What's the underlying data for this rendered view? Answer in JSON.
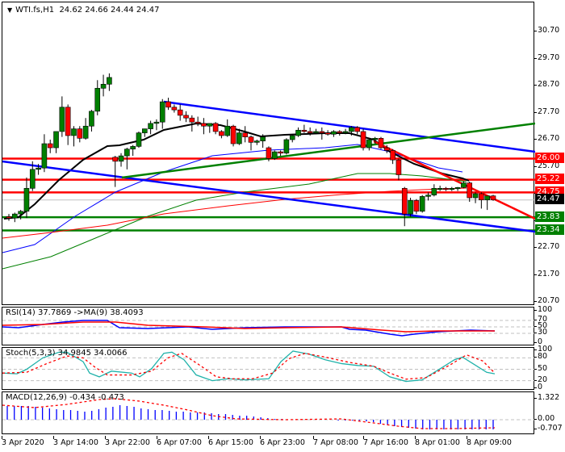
{
  "header": {
    "symbol": "WTI.fs,H1",
    "ohlc": "24.62 24.66 24.44 24.47",
    "dropdown_icon": "triangle-down-icon"
  },
  "colors": {
    "bull": "#007f00",
    "bear": "#ff0000",
    "resistance": "#ff0000",
    "support": "#008000",
    "channel": "#0000ff",
    "ma_fast": "#000000",
    "current_price_bg": "#000000"
  },
  "price_scale": {
    "ticks": [
      "30.70",
      "29.70",
      "28.70",
      "27.70",
      "26.70",
      "25.70",
      "24.70",
      "23.70",
      "22.70",
      "21.70",
      "20.70"
    ]
  },
  "levels": [
    {
      "label": "26.00",
      "price": 26.0,
      "color": "#ff0000",
      "kind": "resistance"
    },
    {
      "label": "25.22",
      "price": 25.22,
      "color": "#ff0000",
      "kind": "resistance"
    },
    {
      "label": "24.75",
      "price": 24.75,
      "color": "#ff0000",
      "kind": "resistance"
    },
    {
      "label": "24.47",
      "price": 24.47,
      "color": "#000000",
      "kind": "current"
    },
    {
      "label": "23.83",
      "price": 23.83,
      "color": "#008000",
      "kind": "support"
    },
    {
      "label": "23.34",
      "price": 23.34,
      "color": "#008000",
      "kind": "support"
    }
  ],
  "rsi": {
    "title": "RSI(14) 37.7869  ->MA(9) 38.4093",
    "scale": [
      "100",
      "70",
      "50",
      "30",
      "0"
    ]
  },
  "stoch": {
    "title": "Stoch(5,3,3) 34.9845 34.0066",
    "scale": [
      "100",
      "80",
      "50",
      "20",
      "0"
    ]
  },
  "macd": {
    "title": "MACD(12,26,9) -0.434 -0.473",
    "scale": [
      "1.322",
      "0.00",
      "-0.707"
    ]
  },
  "time_axis": {
    "labels": [
      "3 Apr 2020",
      "3 Apr 14:00",
      "3 Apr 22:00",
      "6 Apr 07:00",
      "6 Apr 15:00",
      "6 Apr 23:00",
      "7 Apr 08:00",
      "7 Apr 16:00",
      "8 Apr 01:00",
      "8 Apr 09:00"
    ]
  },
  "chart_data": {
    "type": "candlestick",
    "title": "WTI.fs,H1 24.62 24.66 24.44 24.47",
    "xlabel": "",
    "ylabel": "",
    "ylim": [
      20.5,
      31.7
    ],
    "grid": false,
    "categories": [
      "3 Apr 2020",
      "3 Apr 14:00",
      "3 Apr 22:00",
      "6 Apr 07:00",
      "6 Apr 15:00",
      "6 Apr 23:00",
      "7 Apr 08:00",
      "7 Apr 16:00",
      "8 Apr 01:00",
      "8 Apr 09:00"
    ],
    "candles": [
      {
        "o": 23.85,
        "h": 23.95,
        "l": 23.7,
        "c": 23.8
      },
      {
        "o": 23.8,
        "h": 24.0,
        "l": 23.65,
        "c": 23.95
      },
      {
        "o": 23.95,
        "h": 24.1,
        "l": 23.75,
        "c": 24.05
      },
      {
        "o": 24.05,
        "h": 25.3,
        "l": 23.8,
        "c": 24.9
      },
      {
        "o": 24.9,
        "h": 25.9,
        "l": 24.8,
        "c": 25.6
      },
      {
        "o": 25.6,
        "h": 25.8,
        "l": 25.4,
        "c": 25.65
      },
      {
        "o": 25.65,
        "h": 26.9,
        "l": 25.5,
        "c": 26.55
      },
      {
        "o": 26.55,
        "h": 26.7,
        "l": 26.2,
        "c": 26.4
      },
      {
        "o": 26.4,
        "h": 27.0,
        "l": 26.2,
        "c": 27.0
      },
      {
        "o": 27.0,
        "h": 28.3,
        "l": 26.8,
        "c": 27.9
      },
      {
        "o": 27.9,
        "h": 28.0,
        "l": 26.5,
        "c": 26.85
      },
      {
        "o": 26.85,
        "h": 27.2,
        "l": 26.45,
        "c": 27.1
      },
      {
        "o": 27.1,
        "h": 27.2,
        "l": 26.6,
        "c": 26.75
      },
      {
        "o": 26.75,
        "h": 27.5,
        "l": 26.7,
        "c": 27.2
      },
      {
        "o": 27.2,
        "h": 27.8,
        "l": 27.0,
        "c": 27.75
      },
      {
        "o": 27.75,
        "h": 28.9,
        "l": 27.6,
        "c": 28.6
      },
      {
        "o": 28.6,
        "h": 29.1,
        "l": 28.3,
        "c": 28.75
      },
      {
        "o": 28.75,
        "h": 29.15,
        "l": 28.5,
        "c": 29.0
      },
      {
        "o": 26.05,
        "h": 26.1,
        "l": 24.95,
        "c": 25.9
      },
      {
        "o": 25.9,
        "h": 26.2,
        "l": 25.7,
        "c": 26.1
      },
      {
        "o": 26.1,
        "h": 26.4,
        "l": 25.6,
        "c": 26.35
      },
      {
        "o": 26.35,
        "h": 26.5,
        "l": 26.1,
        "c": 26.45
      },
      {
        "o": 26.45,
        "h": 27.0,
        "l": 26.4,
        "c": 26.95
      },
      {
        "o": 26.95,
        "h": 27.1,
        "l": 26.8,
        "c": 27.1
      },
      {
        "o": 27.1,
        "h": 27.4,
        "l": 26.9,
        "c": 27.3
      },
      {
        "o": 27.3,
        "h": 27.45,
        "l": 27.05,
        "c": 27.35
      },
      {
        "o": 27.35,
        "h": 28.2,
        "l": 27.1,
        "c": 28.1
      },
      {
        "o": 28.1,
        "h": 28.25,
        "l": 27.8,
        "c": 27.9
      },
      {
        "o": 27.9,
        "h": 28.0,
        "l": 27.7,
        "c": 27.8
      },
      {
        "o": 27.8,
        "h": 28.0,
        "l": 27.4,
        "c": 27.6
      },
      {
        "o": 27.6,
        "h": 27.75,
        "l": 27.35,
        "c": 27.5
      },
      {
        "o": 27.5,
        "h": 27.6,
        "l": 27.0,
        "c": 27.35
      },
      {
        "o": 27.35,
        "h": 27.55,
        "l": 27.2,
        "c": 27.3
      },
      {
        "o": 27.3,
        "h": 27.5,
        "l": 26.9,
        "c": 27.2
      },
      {
        "o": 27.2,
        "h": 27.3,
        "l": 26.95,
        "c": 27.3
      },
      {
        "o": 27.3,
        "h": 27.35,
        "l": 26.9,
        "c": 27.0
      },
      {
        "o": 27.0,
        "h": 27.05,
        "l": 26.75,
        "c": 26.85
      },
      {
        "o": 26.85,
        "h": 27.45,
        "l": 26.8,
        "c": 27.2
      },
      {
        "o": 27.2,
        "h": 27.25,
        "l": 26.45,
        "c": 26.55
      },
      {
        "o": 26.55,
        "h": 27.1,
        "l": 26.5,
        "c": 26.95
      },
      {
        "o": 26.95,
        "h": 27.2,
        "l": 26.6,
        "c": 26.8
      },
      {
        "o": 26.8,
        "h": 26.85,
        "l": 26.3,
        "c": 26.6
      },
      {
        "o": 26.6,
        "h": 26.7,
        "l": 26.5,
        "c": 26.65
      },
      {
        "o": 26.65,
        "h": 26.9,
        "l": 26.4,
        "c": 26.8
      },
      {
        "o": 26.4,
        "h": 26.45,
        "l": 25.9,
        "c": 26.0
      },
      {
        "o": 26.0,
        "h": 26.3,
        "l": 25.95,
        "c": 26.25
      },
      {
        "o": 26.25,
        "h": 26.3,
        "l": 26.1,
        "c": 26.2
      },
      {
        "o": 26.2,
        "h": 26.75,
        "l": 26.15,
        "c": 26.7
      },
      {
        "o": 26.7,
        "h": 26.9,
        "l": 26.6,
        "c": 26.85
      },
      {
        "o": 26.85,
        "h": 27.15,
        "l": 26.8,
        "c": 27.05
      },
      {
        "o": 27.05,
        "h": 27.25,
        "l": 26.95,
        "c": 27.0
      },
      {
        "o": 27.0,
        "h": 27.15,
        "l": 26.85,
        "c": 26.95
      },
      {
        "o": 26.95,
        "h": 27.1,
        "l": 26.9,
        "c": 27.0
      },
      {
        "o": 27.0,
        "h": 27.15,
        "l": 26.7,
        "c": 26.95
      },
      {
        "o": 26.95,
        "h": 27.05,
        "l": 26.85,
        "c": 26.9
      },
      {
        "o": 26.9,
        "h": 27.05,
        "l": 26.8,
        "c": 27.0
      },
      {
        "o": 27.0,
        "h": 27.05,
        "l": 26.85,
        "c": 26.95
      },
      {
        "o": 26.95,
        "h": 27.1,
        "l": 26.9,
        "c": 27.0
      },
      {
        "o": 27.0,
        "h": 27.2,
        "l": 26.85,
        "c": 27.15
      },
      {
        "o": 27.15,
        "h": 27.2,
        "l": 26.9,
        "c": 27.0
      },
      {
        "o": 27.0,
        "h": 27.1,
        "l": 26.3,
        "c": 26.4
      },
      {
        "o": 26.4,
        "h": 26.75,
        "l": 26.3,
        "c": 26.7
      },
      {
        "o": 26.7,
        "h": 26.8,
        "l": 26.55,
        "c": 26.75
      },
      {
        "o": 26.75,
        "h": 26.8,
        "l": 26.35,
        "c": 26.4
      },
      {
        "o": 26.4,
        "h": 26.5,
        "l": 26.2,
        "c": 26.3
      },
      {
        "o": 26.3,
        "h": 26.35,
        "l": 25.8,
        "c": 25.95
      },
      {
        "o": 25.95,
        "h": 26.0,
        "l": 25.2,
        "c": 25.4
      },
      {
        "o": 24.9,
        "h": 24.95,
        "l": 23.5,
        "c": 23.95
      },
      {
        "o": 23.95,
        "h": 24.55,
        "l": 23.85,
        "c": 24.45
      },
      {
        "o": 24.45,
        "h": 24.5,
        "l": 23.95,
        "c": 24.05
      },
      {
        "o": 24.05,
        "h": 24.65,
        "l": 24.0,
        "c": 24.6
      },
      {
        "o": 24.6,
        "h": 24.75,
        "l": 24.45,
        "c": 24.65
      },
      {
        "o": 24.65,
        "h": 25.05,
        "l": 24.6,
        "c": 24.9
      },
      {
        "o": 24.9,
        "h": 25.0,
        "l": 24.8,
        "c": 24.9
      },
      {
        "o": 24.9,
        "h": 24.95,
        "l": 24.8,
        "c": 24.88
      },
      {
        "o": 24.88,
        "h": 24.95,
        "l": 24.8,
        "c": 24.9
      },
      {
        "o": 24.9,
        "h": 24.95,
        "l": 24.8,
        "c": 24.93
      },
      {
        "o": 24.93,
        "h": 25.15,
        "l": 24.9,
        "c": 25.1
      },
      {
        "o": 25.1,
        "h": 25.15,
        "l": 24.4,
        "c": 24.55
      },
      {
        "o": 24.55,
        "h": 24.75,
        "l": 24.35,
        "c": 24.7
      },
      {
        "o": 24.7,
        "h": 24.75,
        "l": 24.15,
        "c": 24.47
      },
      {
        "o": 24.47,
        "h": 24.6,
        "l": 24.1,
        "c": 24.62
      },
      {
        "o": 24.62,
        "h": 24.66,
        "l": 24.44,
        "c": 24.47
      }
    ],
    "indicators": {
      "rsi": {
        "value": 37.7869,
        "ma": 38.4093,
        "levels": [
          70,
          50,
          30
        ]
      },
      "stochastic": {
        "k": 34.9845,
        "d": 34.0066,
        "levels": [
          80,
          50,
          20
        ]
      },
      "macd": {
        "macd": -0.434,
        "signal": -0.473,
        "scale_max": 1.322,
        "scale_min": -0.707
      }
    },
    "horizontal_levels": [
      26.0,
      25.22,
      24.75,
      23.83,
      23.34
    ],
    "annotations": [
      "Descending channel (blue)",
      "Descending red trendline",
      "Rising green trendline"
    ]
  }
}
